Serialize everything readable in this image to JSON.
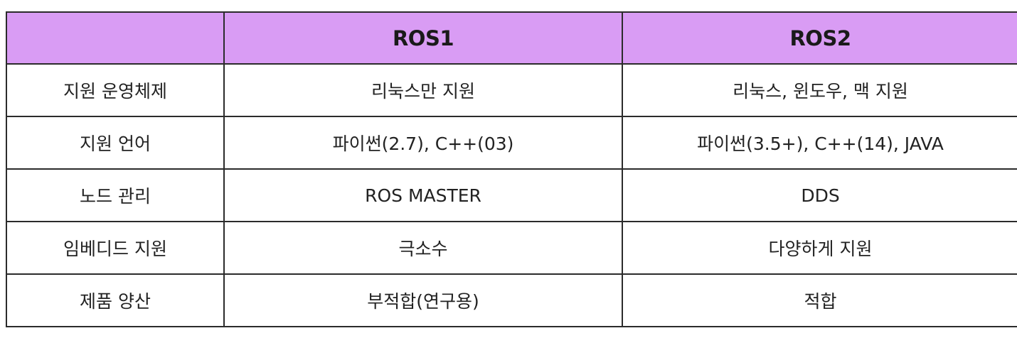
{
  "table": {
    "headers": [
      "",
      "ROS1",
      "ROS2"
    ],
    "rows": [
      {
        "feature": "지원 운영체제",
        "ros1": "리눅스만 지원",
        "ros2": "리눅스, 윈도우, 맥 지원"
      },
      {
        "feature": "지원 언어",
        "ros1": "파이썬(2.7), C++(03)",
        "ros2": "파이썬(3.5+), C++(14), JAVA"
      },
      {
        "feature": "노드 관리",
        "ros1": "ROS MASTER",
        "ros2": "DDS"
      },
      {
        "feature": "임베디드 지원",
        "ros1": "극소수",
        "ros2": "다양하게 지원"
      },
      {
        "feature": "제품 양산",
        "ros1": "부적합(연구용)",
        "ros2": "적합"
      }
    ]
  },
  "colors": {
    "header_background": "#d99cf4",
    "border": "#2b2b2b"
  }
}
